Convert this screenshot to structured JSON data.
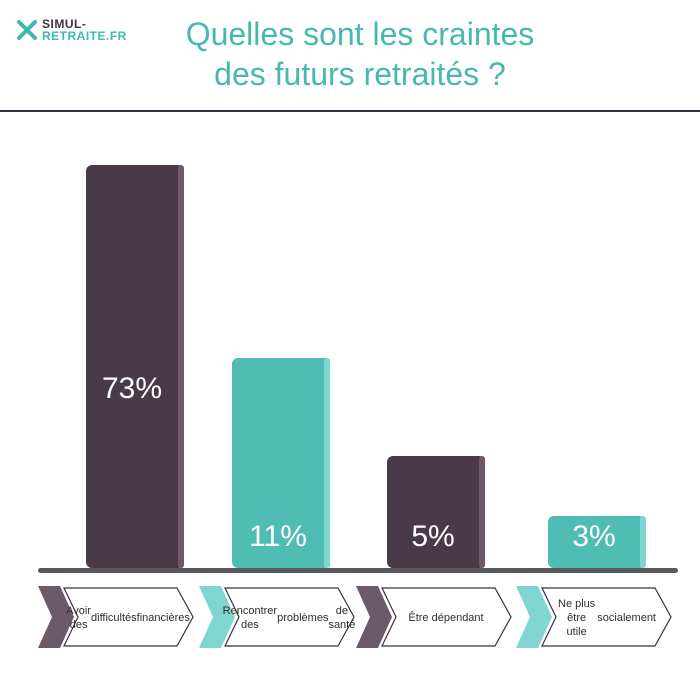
{
  "brand": {
    "line1": "SIMUL-",
    "line2": "RETRAITE.FR"
  },
  "title": {
    "line1": "Quelles sont les craintes",
    "line2": "des futurs retraités ?"
  },
  "colors": {
    "dark": "#4a3a47",
    "dark_side": "#6d5a68",
    "teal": "#4fbdb3",
    "teal_side": "#7fd6cf",
    "title": "#47b8ae"
  },
  "chart_data": {
    "type": "bar",
    "categories": [
      "Avoir des difficultés financières",
      "Rencontrer des problèmes de santé",
      "Être dépendant",
      "Ne plus être utile socialement"
    ],
    "category_lines": [
      [
        "Avoir des",
        "difficultés",
        "financières"
      ],
      [
        "Rencontrer des",
        "problèmes",
        "de santé"
      ],
      [
        "Être dépendant"
      ],
      [
        "Ne plus être utile",
        "socialement"
      ]
    ],
    "values": [
      73,
      11,
      5,
      3
    ],
    "value_labels": [
      "73%",
      "11%",
      "5%",
      "3%"
    ],
    "unit": "%",
    "ylim": [
      0,
      100
    ],
    "bar_colors": [
      "dark",
      "teal",
      "dark",
      "teal"
    ]
  }
}
